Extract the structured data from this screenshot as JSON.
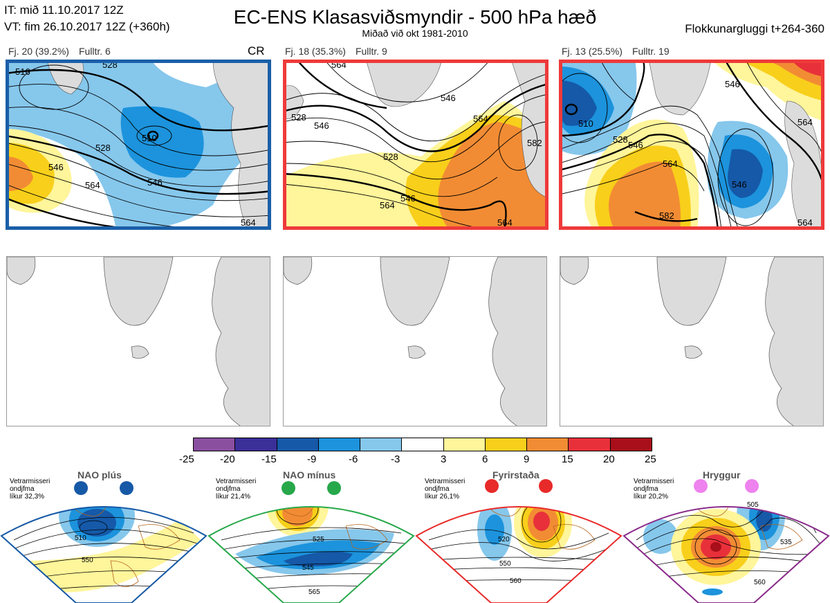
{
  "header": {
    "init_time": "IT: mið 11.10.2017 12Z",
    "valid_time": "VT: fim 26.10.2017 12Z  (+360h)",
    "title": "EC-ENS Klasasviðsmyndir - 500 hPa hæð",
    "subtitle": "Miðað við okt 1981-2010",
    "window": "Flokkunargluggi t+264-360"
  },
  "clusters": [
    {
      "label": "Fj. 20 (39.2%)",
      "rep": "Fulltr. 6",
      "tag": "CR",
      "frame_color": "#1a5fa8",
      "contour_labels": [
        "516",
        "528",
        "546",
        "564",
        "510",
        "528",
        "546",
        "564"
      ]
    },
    {
      "label": "Fj. 18 (35.3%)",
      "rep": "Fulltr. 9",
      "frame_color": "#ee3a3a",
      "contour_labels": [
        "528",
        "546",
        "528",
        "546",
        "564",
        "546",
        "564",
        "564",
        "582",
        "564"
      ]
    },
    {
      "label": "Fj. 13 (25.5%)",
      "rep": "Fulltr. 19",
      "frame_color": "#ee3a3a",
      "contour_labels": [
        "546",
        "564",
        "510",
        "528",
        "546",
        "564",
        "546",
        "582",
        "564"
      ]
    }
  ],
  "colorscale": {
    "ticks": [
      "-25",
      "-20",
      "-15",
      "-9",
      "-6",
      "-3",
      "3",
      "6",
      "9",
      "15",
      "20",
      "25"
    ],
    "colors": [
      "#8b4fa0",
      "#3b2f98",
      "#1559a8",
      "#1c93dc",
      "#86c7ec",
      "#ffffff",
      "#fff59a",
      "#f8cf1a",
      "#f28c34",
      "#e8303a",
      "#a80f1a"
    ]
  },
  "regimes": [
    {
      "name": "NAO plús",
      "note": [
        "Vetrarmisseri",
        "ondjfma",
        "líkur 32,3%"
      ],
      "color": "#1659a6",
      "labels": [
        "510",
        "550"
      ]
    },
    {
      "name": "NAO mínus",
      "note": [
        "Vetrarmisseri",
        "ondjfma",
        "líkur 21,4%"
      ],
      "color": "#27a84a",
      "labels": [
        "525",
        "545",
        "565"
      ]
    },
    {
      "name": "Fyrirstaða",
      "note": [
        "Vetrarmisseri",
        "ondjfma",
        "líkur 26,1%"
      ],
      "color": "#e82a2a",
      "labels": [
        "520",
        "550",
        "560"
      ]
    },
    {
      "name": "Hryggur",
      "note": [
        "Vetrarmisseri",
        "ondjfma",
        "líkur 20,2%"
      ],
      "color": "#8a2b8a",
      "labels": [
        "505",
        "535",
        "560"
      ]
    }
  ]
}
